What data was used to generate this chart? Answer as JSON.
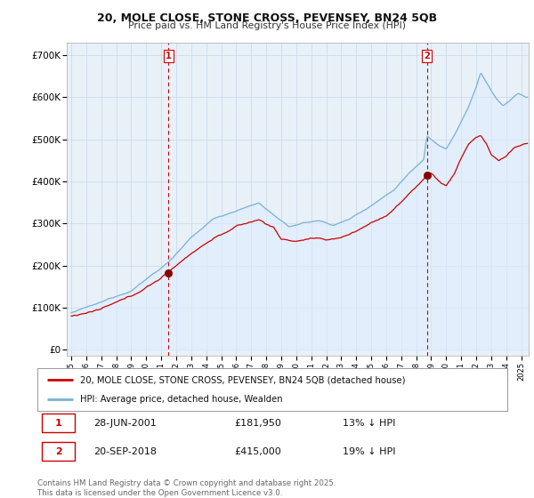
{
  "title_line1": "20, MOLE CLOSE, STONE CROSS, PEVENSEY, BN24 5QB",
  "title_line2": "Price paid vs. HM Land Registry's House Price Index (HPI)",
  "legend_label1": "20, MOLE CLOSE, STONE CROSS, PEVENSEY, BN24 5QB (detached house)",
  "legend_label2": "HPI: Average price, detached house, Wealden",
  "sale1_label": "1",
  "sale1_date": "28-JUN-2001",
  "sale1_price": "£181,950",
  "sale1_hpi": "13% ↓ HPI",
  "sale1_year": 2001.49,
  "sale2_label": "2",
  "sale2_date": "20-SEP-2018",
  "sale2_price": "£415,000",
  "sale2_hpi": "19% ↓ HPI",
  "sale2_year": 2018.72,
  "ylabel_ticks": [
    0,
    100000,
    200000,
    300000,
    400000,
    500000,
    600000,
    700000
  ],
  "ylabel_labels": [
    "£0",
    "£100K",
    "£200K",
    "£300K",
    "£400K",
    "£500K",
    "£600K",
    "£700K"
  ],
  "ylim": [
    -15000,
    730000
  ],
  "xlim_start": 1994.7,
  "xlim_end": 2025.5,
  "property_color": "#cc0000",
  "hpi_color": "#7ab0d4",
  "hpi_fill_color": "#ddeeff",
  "vline_color": "#cc0000",
  "background_color": "#e8f0f8",
  "grid_color": "#c8d8e8",
  "footer_text": "Contains HM Land Registry data © Crown copyright and database right 2025.\nThis data is licensed under the Open Government Licence v3.0.",
  "sale1_marker_y": 181950,
  "sale2_marker_y": 415000
}
